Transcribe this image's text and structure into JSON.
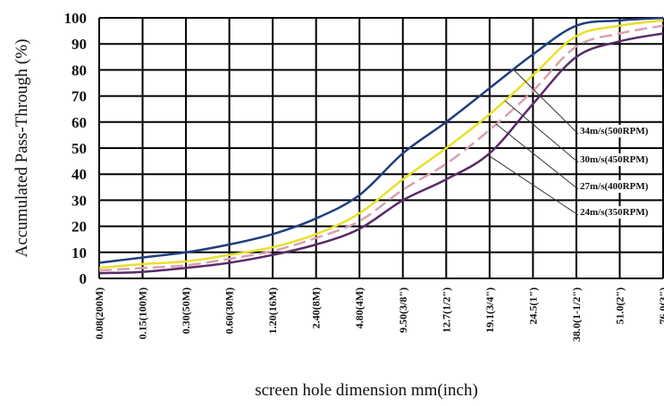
{
  "chart_data": {
    "type": "line",
    "title": "",
    "xlabel": "screen hole dimension mm(inch)",
    "ylabel": "Accumulated Pass-Through (%)",
    "x_categories": [
      "0.08(200M)",
      "0.15(100M)",
      "0.30(50M)",
      "0.60(30M)",
      "1.20(16M)",
      "2.40(8M)",
      "4.80(4M)",
      "9.50(3/8\")",
      "12.7(1/2\")",
      "19.1(3/4\")",
      "24.5(1\")",
      "38.0(1-1/2\")",
      "51.0(2\")",
      "76.0(3\")"
    ],
    "y_ticks": [
      0,
      10,
      20,
      30,
      40,
      50,
      60,
      70,
      80,
      90,
      100
    ],
    "ylim": [
      0,
      100
    ],
    "grid": true,
    "series": [
      {
        "name": "34m/s(500RPM)",
        "color": "#1f3f7f",
        "values": [
          6,
          8,
          10,
          13,
          17,
          23,
          32,
          48,
          60,
          73,
          86,
          97,
          99,
          100
        ]
      },
      {
        "name": "30m/s(450RPM)",
        "color": "#e8e02a",
        "values": [
          4,
          5.5,
          6.5,
          9,
          12,
          17,
          25,
          38,
          50,
          63,
          78,
          93,
          97,
          99
        ]
      },
      {
        "name": "27m/s(400RPM)",
        "color": "#d9a0b0",
        "values": [
          3,
          4,
          5,
          7.5,
          10.5,
          15.5,
          22,
          34,
          44,
          57,
          72,
          89,
          94,
          97
        ]
      },
      {
        "name": "24m/s(350RPM)",
        "color": "#5a2a6a",
        "values": [
          2,
          2.5,
          4,
          6,
          9,
          13,
          19,
          30,
          38,
          48,
          67,
          85,
          91,
          94
        ]
      }
    ]
  }
}
